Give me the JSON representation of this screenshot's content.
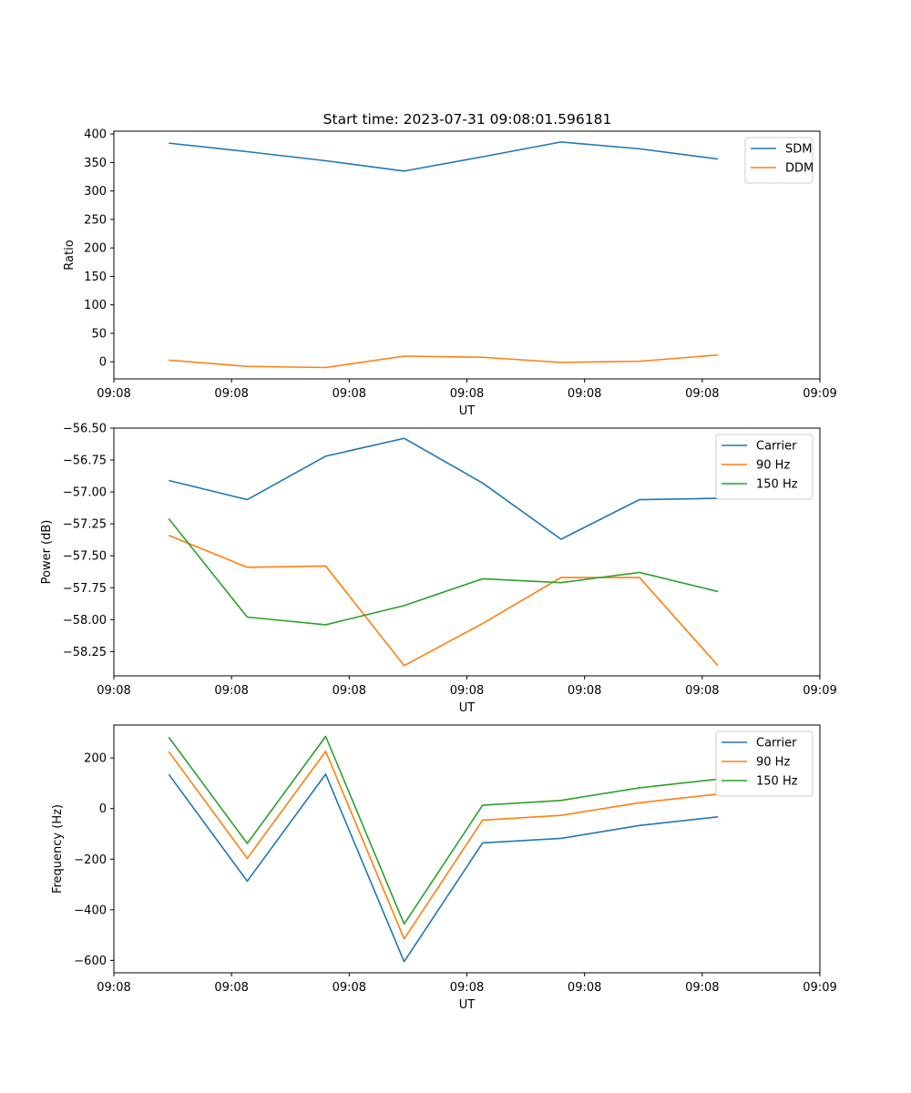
{
  "figure_title": "Start time: 2023-07-31 09:08:01.596181",
  "chart_data": [
    {
      "type": "line",
      "title": "Start time: 2023-07-31 09:08:01.596181",
      "xlabel": "UT",
      "ylabel": "Ratio",
      "x": [
        0,
        1,
        2,
        3,
        4,
        5,
        6,
        7
      ],
      "xlim": [
        -0.7,
        8.3
      ],
      "x_ticks": [
        -0.7,
        0.8,
        2.3,
        3.8,
        5.3,
        6.8,
        8.3
      ],
      "x_tick_labels": [
        "09:08",
        "09:08",
        "09:08",
        "09:08",
        "09:08",
        "09:08",
        "09:09"
      ],
      "ylim": [
        -30,
        405
      ],
      "y_ticks": [
        0,
        50,
        100,
        150,
        200,
        250,
        300,
        350,
        400
      ],
      "y_tick_labels": [
        "0",
        "50",
        "100",
        "150",
        "200",
        "250",
        "300",
        "350",
        "400"
      ],
      "legend_position": "top-right",
      "series": [
        {
          "name": "SDM",
          "color": "#1f77b4",
          "values": [
            384,
            369,
            353,
            335,
            360,
            386,
            374,
            356
          ]
        },
        {
          "name": "DDM",
          "color": "#ff7f0e",
          "values": [
            3,
            -8,
            -10,
            10,
            8,
            -1,
            1,
            12
          ]
        }
      ]
    },
    {
      "type": "line",
      "title": "",
      "xlabel": "UT",
      "ylabel": "Power (dB)",
      "x": [
        0,
        1,
        2,
        3,
        4,
        5,
        6,
        7
      ],
      "xlim": [
        -0.7,
        8.3
      ],
      "x_ticks": [
        -0.7,
        0.8,
        2.3,
        3.8,
        5.3,
        6.8,
        8.3
      ],
      "x_tick_labels": [
        "09:08",
        "09:08",
        "09:08",
        "09:08",
        "09:08",
        "09:08",
        "09:09"
      ],
      "ylim": [
        -58.44,
        -56.5
      ],
      "y_ticks": [
        -56.5,
        -56.75,
        -57.0,
        -57.25,
        -57.5,
        -57.75,
        -58.0,
        -58.25
      ],
      "y_tick_labels": [
        "−56.50",
        "−56.75",
        "−57.00",
        "−57.25",
        "−57.50",
        "−57.75",
        "−58.00",
        "−58.25"
      ],
      "legend_position": "top-right",
      "series": [
        {
          "name": "Carrier",
          "color": "#1f77b4",
          "values": [
            -56.91,
            -57.06,
            -56.72,
            -56.58,
            -56.93,
            -57.37,
            -57.06,
            -57.05
          ]
        },
        {
          "name": "90 Hz",
          "color": "#ff7f0e",
          "values": [
            -57.34,
            -57.59,
            -57.58,
            -58.36,
            -58.03,
            -57.67,
            -57.67,
            -58.36
          ]
        },
        {
          "name": "150 Hz",
          "color": "#2ca02c",
          "values": [
            -57.21,
            -57.98,
            -58.04,
            -57.89,
            -57.68,
            -57.71,
            -57.63,
            -57.78
          ]
        }
      ]
    },
    {
      "type": "line",
      "title": "",
      "xlabel": "UT",
      "ylabel": "Frequency (Hz)",
      "x": [
        0,
        1,
        2,
        3,
        4,
        5,
        6,
        7
      ],
      "xlim": [
        -0.7,
        8.3
      ],
      "x_ticks": [
        -0.7,
        0.8,
        2.3,
        3.8,
        5.3,
        6.8,
        8.3
      ],
      "x_tick_labels": [
        "09:08",
        "09:08",
        "09:08",
        "09:08",
        "09:08",
        "09:08",
        "09:09"
      ],
      "ylim": [
        -649,
        330
      ],
      "y_ticks": [
        200,
        0,
        -200,
        -400,
        -600
      ],
      "y_tick_labels": [
        "200",
        "0",
        "−200",
        "−400",
        "−600"
      ],
      "legend_position": "top-right",
      "series": [
        {
          "name": "Carrier",
          "color": "#1f77b4",
          "values": [
            135,
            -287,
            136,
            -605,
            -136,
            -118,
            -67,
            -33
          ]
        },
        {
          "name": "90 Hz",
          "color": "#ff7f0e",
          "values": [
            225,
            -197,
            226,
            -515,
            -46,
            -27,
            23,
            57
          ]
        },
        {
          "name": "150 Hz",
          "color": "#2ca02c",
          "values": [
            282,
            -138,
            285,
            -456,
            13,
            32,
            82,
            116
          ]
        }
      ]
    }
  ]
}
